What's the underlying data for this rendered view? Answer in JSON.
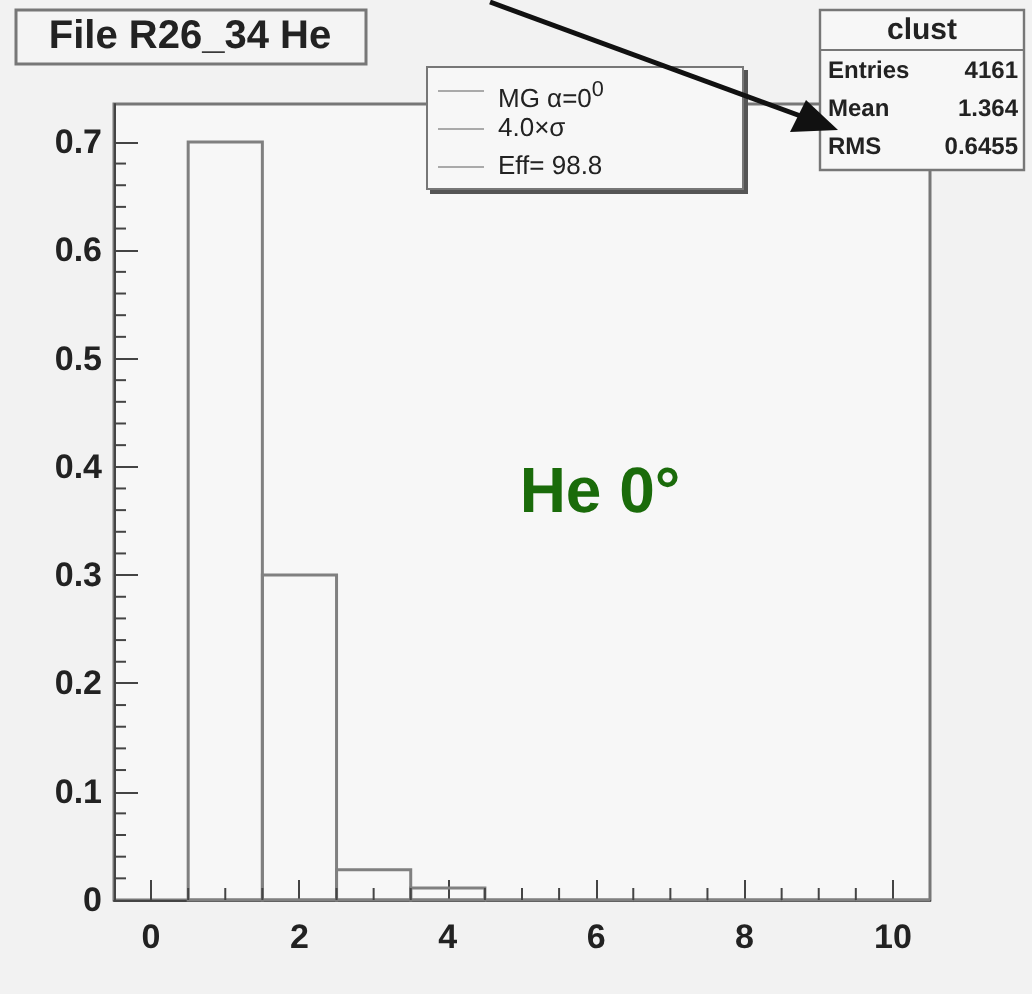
{
  "chart_data": {
    "type": "histogram",
    "title": "File R26_34 He",
    "bins": [
      0.5,
      1.5,
      2.5,
      3.5,
      4.5,
      5.5,
      6.5,
      7.5,
      8.5,
      9.5,
      10.5
    ],
    "values": [
      0.7,
      0.3,
      0.028,
      0.011,
      0,
      0,
      0,
      0,
      0,
      0
    ],
    "color": "#808080",
    "xlim": [
      -0.5,
      10.5
    ],
    "xticks": [
      0,
      2,
      4,
      6,
      8,
      10
    ],
    "ylim": [
      0,
      0.735
    ],
    "yticks": [
      0,
      0.1,
      0.2,
      0.3,
      0.4,
      0.5,
      0.6,
      0.7
    ],
    "grid": false,
    "annotations": [
      "MG α=0$^{0}$",
      "4.0×σ",
      "Eff= 98.8",
      "clust",
      "Entries 4161",
      "Mean 1.364",
      "RMS 0.6455",
      "He 0°"
    ]
  }
}
